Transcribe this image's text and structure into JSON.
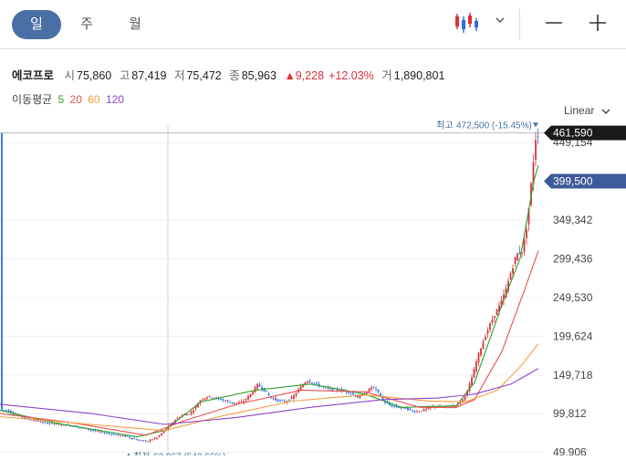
{
  "tabs": [
    {
      "label": "일",
      "active": true
    },
    {
      "label": "주",
      "active": false
    },
    {
      "label": "월",
      "active": false
    }
  ],
  "toolbar": {
    "chart_type_icon": "candlestick-icon",
    "dropdown_icon": "chevron-down-icon",
    "zoom_out_icon": "minus-icon",
    "zoom_in_icon": "plus-icon"
  },
  "stock": {
    "name": "에코프로",
    "open_label": "시",
    "open": "75,860",
    "high_label": "고",
    "high": "87,419",
    "low_label": "저",
    "low": "75,472",
    "close_label": "종",
    "close": "85,963",
    "change": "▲9,228",
    "change_pct": "+12.03%",
    "volume_label": "거",
    "volume": "1,890,801"
  },
  "moving_average": {
    "label": "이동평균",
    "periods": [
      {
        "label": "5",
        "color": "#2ca02c"
      },
      {
        "label": "20",
        "color": "#e8504f"
      },
      {
        "label": "60",
        "color": "#f39c3c"
      },
      {
        "label": "120",
        "color": "#8e44c9"
      }
    ]
  },
  "scale_mode": "Linear",
  "chart_data": {
    "type": "candlestick",
    "y_ticks": [
      49906,
      99812,
      149718,
      199624,
      249530,
      299436,
      349342,
      449154
    ],
    "y_tick_labels": [
      "49,906",
      "99,812",
      "149,718",
      "199,624",
      "249,530",
      "299,436",
      "349,342",
      "449,154"
    ],
    "ylim": [
      46000,
      480000
    ],
    "current_price": 461590,
    "current_price_label": "461,590",
    "secondary_price": 399500,
    "secondary_price_label": "399,500",
    "high_marker": {
      "label": "최고",
      "value": 472500,
      "value_label": "472,500 (-15.45%)"
    },
    "low_marker": {
      "label": "최저",
      "value": 62067,
      "value_label": "62,067 (543.66%)"
    },
    "up_color": "#d9323a",
    "down_color": "#2f6fd6",
    "close_trend": [
      [
        0,
        105000
      ],
      [
        8,
        104000
      ],
      [
        20,
        97000
      ],
      [
        35,
        92000
      ],
      [
        50,
        88000
      ],
      [
        65,
        86000
      ],
      [
        80,
        84000
      ],
      [
        95,
        80000
      ],
      [
        110,
        76000
      ],
      [
        125,
        73000
      ],
      [
        140,
        70000
      ],
      [
        150,
        66000
      ],
      [
        160,
        64000
      ],
      [
        172,
        69000
      ],
      [
        182,
        80000
      ],
      [
        192,
        92000
      ],
      [
        200,
        98000
      ],
      [
        208,
        100000
      ],
      [
        214,
        108000
      ],
      [
        220,
        118000
      ],
      [
        228,
        122000
      ],
      [
        236,
        120000
      ],
      [
        246,
        117000
      ],
      [
        256,
        113000
      ],
      [
        266,
        115000
      ],
      [
        274,
        124000
      ],
      [
        282,
        137000
      ],
      [
        288,
        132000
      ],
      [
        296,
        121000
      ],
      [
        304,
        117000
      ],
      [
        312,
        115000
      ],
      [
        320,
        120000
      ],
      [
        328,
        132000
      ],
      [
        336,
        143000
      ],
      [
        344,
        139000
      ],
      [
        352,
        135000
      ],
      [
        360,
        132000
      ],
      [
        368,
        131000
      ],
      [
        376,
        130000
      ],
      [
        384,
        127000
      ],
      [
        392,
        121000
      ],
      [
        400,
        126000
      ],
      [
        408,
        135000
      ],
      [
        414,
        128000
      ],
      [
        420,
        116000
      ],
      [
        428,
        110000
      ],
      [
        436,
        108000
      ],
      [
        444,
        107000
      ],
      [
        452,
        103000
      ],
      [
        460,
        103000
      ],
      [
        468,
        106000
      ],
      [
        476,
        109000
      ],
      [
        484,
        108000
      ],
      [
        492,
        108000
      ],
      [
        500,
        111000
      ],
      [
        506,
        116000
      ],
      [
        512,
        128000
      ],
      [
        518,
        150000
      ],
      [
        524,
        175000
      ],
      [
        530,
        195000
      ],
      [
        536,
        212000
      ],
      [
        542,
        228000
      ],
      [
        548,
        240000
      ],
      [
        554,
        258000
      ],
      [
        560,
        283000
      ],
      [
        566,
        305000
      ],
      [
        572,
        310000
      ],
      [
        576,
        330000
      ],
      [
        580,
        370000
      ],
      [
        584,
        420000
      ],
      [
        587,
        455000
      ],
      [
        590,
        461590
      ]
    ],
    "ma5": [
      [
        0,
        104000
      ],
      [
        60,
        88000
      ],
      [
        150,
        70000
      ],
      [
        180,
        78000
      ],
      [
        220,
        115000
      ],
      [
        280,
        130000
      ],
      [
        340,
        138000
      ],
      [
        400,
        125000
      ],
      [
        440,
        108000
      ],
      [
        500,
        110000
      ],
      [
        520,
        140000
      ],
      [
        550,
        240000
      ],
      [
        570,
        300000
      ],
      [
        585,
        400000
      ],
      [
        590,
        420000
      ]
    ],
    "ma20": [
      [
        0,
        100000
      ],
      [
        80,
        88000
      ],
      [
        160,
        72000
      ],
      [
        200,
        90000
      ],
      [
        260,
        112000
      ],
      [
        330,
        130000
      ],
      [
        400,
        128000
      ],
      [
        460,
        108000
      ],
      [
        500,
        108000
      ],
      [
        520,
        118000
      ],
      [
        550,
        180000
      ],
      [
        575,
        260000
      ],
      [
        590,
        310000
      ]
    ],
    "ma60": [
      [
        0,
        96000
      ],
      [
        100,
        86000
      ],
      [
        180,
        78000
      ],
      [
        240,
        96000
      ],
      [
        320,
        116000
      ],
      [
        400,
        124000
      ],
      [
        470,
        116000
      ],
      [
        510,
        115000
      ],
      [
        545,
        130000
      ],
      [
        570,
        160000
      ],
      [
        590,
        190000
      ]
    ],
    "ma120": [
      [
        0,
        112000
      ],
      [
        100,
        100000
      ],
      [
        180,
        86000
      ],
      [
        260,
        95000
      ],
      [
        340,
        108000
      ],
      [
        420,
        118000
      ],
      [
        480,
        120000
      ],
      [
        520,
        125000
      ],
      [
        560,
        138000
      ],
      [
        590,
        158000
      ]
    ]
  }
}
